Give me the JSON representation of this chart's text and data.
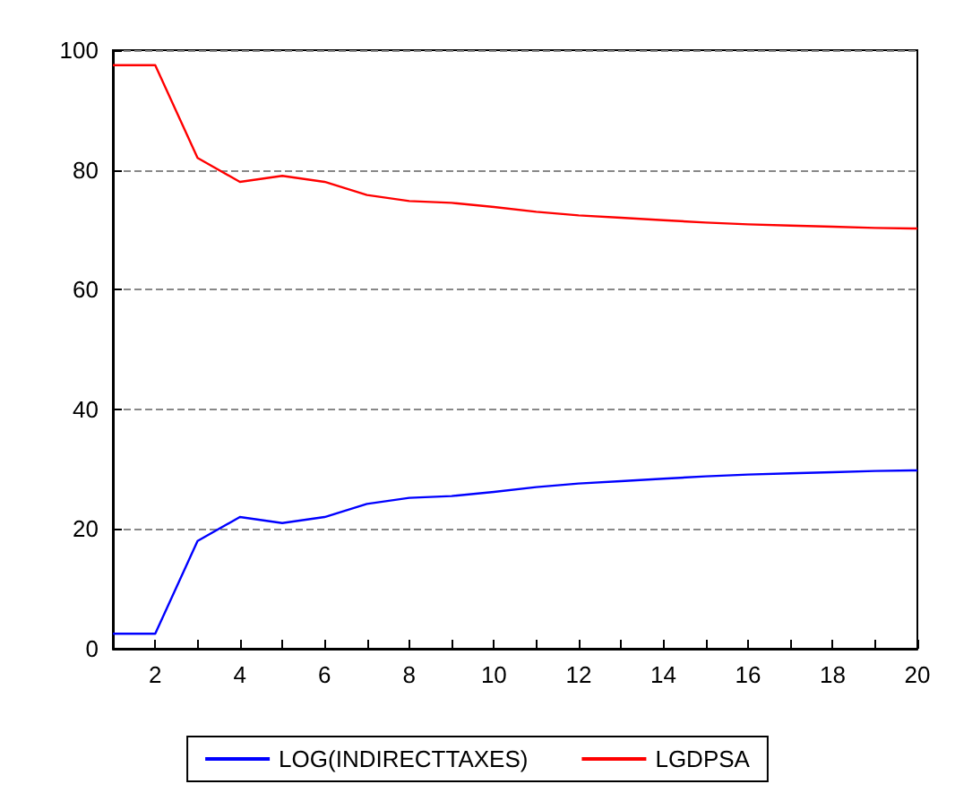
{
  "chart_data": {
    "type": "line",
    "categories": [
      null,
      "2",
      null,
      "4",
      null,
      "6",
      null,
      "8",
      null,
      "10",
      null,
      "12",
      null,
      "14",
      null,
      "16",
      null,
      "18",
      null,
      "20"
    ],
    "series": [
      {
        "name": "LOG(INDIRECTTAXES)",
        "color": "#0000ff",
        "values": [
          2.5,
          2.5,
          18,
          22,
          21,
          22,
          24.2,
          25.2,
          25.5,
          26.2,
          27,
          27.6,
          28,
          28.4,
          28.8,
          29.1,
          29.3,
          29.5,
          29.7,
          29.8
        ]
      },
      {
        "name": "LGDPSA",
        "color": "#ff0000",
        "values": [
          97.5,
          97.5,
          82,
          78,
          79,
          78,
          75.8,
          74.8,
          74.5,
          73.8,
          73,
          72.4,
          72,
          71.6,
          71.2,
          70.9,
          70.7,
          70.5,
          70.3,
          70.2
        ]
      }
    ],
    "ylim": [
      0,
      100
    ],
    "yticks": [
      0,
      20,
      40,
      60,
      80,
      100
    ],
    "grid": "y",
    "legend": "bottom",
    "marker": "none"
  }
}
